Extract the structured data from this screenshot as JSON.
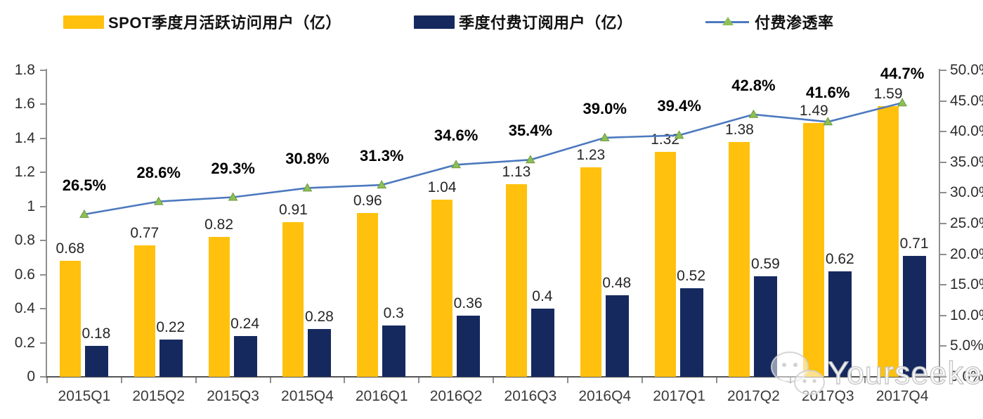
{
  "chart_data": {
    "type": "combo-bar-line",
    "categories": [
      "2015Q1",
      "2015Q2",
      "2015Q3",
      "2015Q4",
      "2016Q1",
      "2016Q2",
      "2016Q3",
      "2016Q4",
      "2017Q1",
      "2017Q2",
      "2017Q3",
      "2017Q4"
    ],
    "series": [
      {
        "name": "SPOT季度月活跃访问用户（亿）",
        "type": "bar",
        "axis": "left",
        "color": "#FFC10D",
        "values": [
          0.68,
          0.77,
          0.82,
          0.91,
          0.96,
          1.04,
          1.13,
          1.23,
          1.32,
          1.38,
          1.49,
          1.59
        ],
        "labels": [
          "0.68",
          "0.77",
          "0.82",
          "0.91",
          "0.96",
          "1.04",
          "1.13",
          "1.23",
          "1.32",
          "1.38",
          "1.49",
          "1.59"
        ]
      },
      {
        "name": "季度付费订阅用户（亿）",
        "type": "bar",
        "axis": "left",
        "color": "#16295F",
        "values": [
          0.18,
          0.22,
          0.24,
          0.28,
          0.3,
          0.36,
          0.4,
          0.48,
          0.52,
          0.59,
          0.62,
          0.71
        ],
        "labels": [
          "0.18",
          "0.22",
          "0.24",
          "0.28",
          "0.3",
          "0.36",
          "0.4",
          "0.48",
          "0.52",
          "0.59",
          "0.62",
          "0.71"
        ]
      },
      {
        "name": "付费渗透率",
        "type": "line",
        "axis": "right",
        "color": "#4D79BE",
        "marker_color": "#8CBF55",
        "marker_edge": "#6E9A3F",
        "values": [
          26.5,
          28.6,
          29.3,
          30.8,
          31.3,
          34.6,
          35.4,
          39.0,
          39.4,
          42.8,
          41.6,
          44.7
        ],
        "labels": [
          "26.5%",
          "28.6%",
          "29.3%",
          "30.8%",
          "31.3%",
          "34.6%",
          "35.4%",
          "39.0%",
          "39.4%",
          "42.8%",
          "41.6%",
          "44.7%"
        ]
      }
    ],
    "left_axis": {
      "min": 0,
      "max": 1.8,
      "step": 0.2,
      "tick_labels": [
        "0",
        "0.2",
        "0.4",
        "0.6",
        "0.8",
        "1",
        "1.2",
        "1.4",
        "1.6",
        "1.8"
      ]
    },
    "right_axis": {
      "min": 0,
      "max": 50,
      "step": 5,
      "tick_labels": [
        "0.0%",
        "5.0%",
        "10.0%",
        "15.0%",
        "20.0%",
        "25.0%",
        "30.0%",
        "35.0%",
        "40.0%",
        "45.0%",
        "50.0%"
      ]
    },
    "grid": false,
    "legend_position": "top"
  },
  "watermark": {
    "text": "Yourseeker",
    "icon": "wechat-chat-bubbles"
  }
}
